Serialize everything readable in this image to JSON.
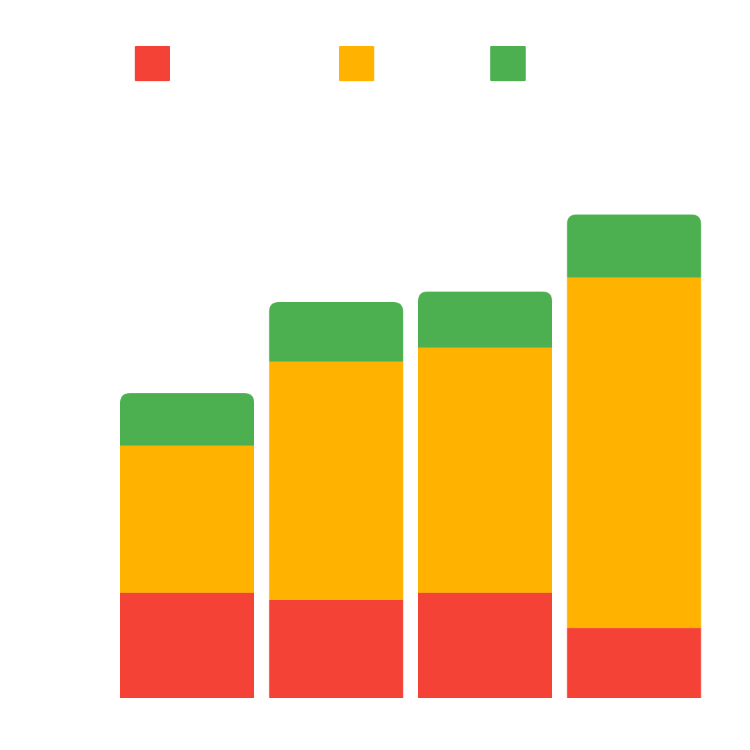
{
  "chart_data": {
    "type": "bar",
    "stacked": true,
    "categories": [
      "",
      "",
      "",
      ""
    ],
    "series": [
      {
        "values": [
          15,
          14,
          15,
          10
        ],
        "color": "#F44336"
      },
      {
        "values": [
          21,
          34,
          35,
          50
        ],
        "color": "#FFB300"
      },
      {
        "values": [
          7.5,
          8.5,
          8,
          9
        ],
        "color": "#4CAF50"
      }
    ],
    "title": "",
    "xlabel": "",
    "ylabel": "",
    "ylim": [
      0,
      90
    ],
    "grid": false,
    "legend": {
      "position": "top",
      "entries": [
        "",
        "",
        ""
      ]
    }
  }
}
